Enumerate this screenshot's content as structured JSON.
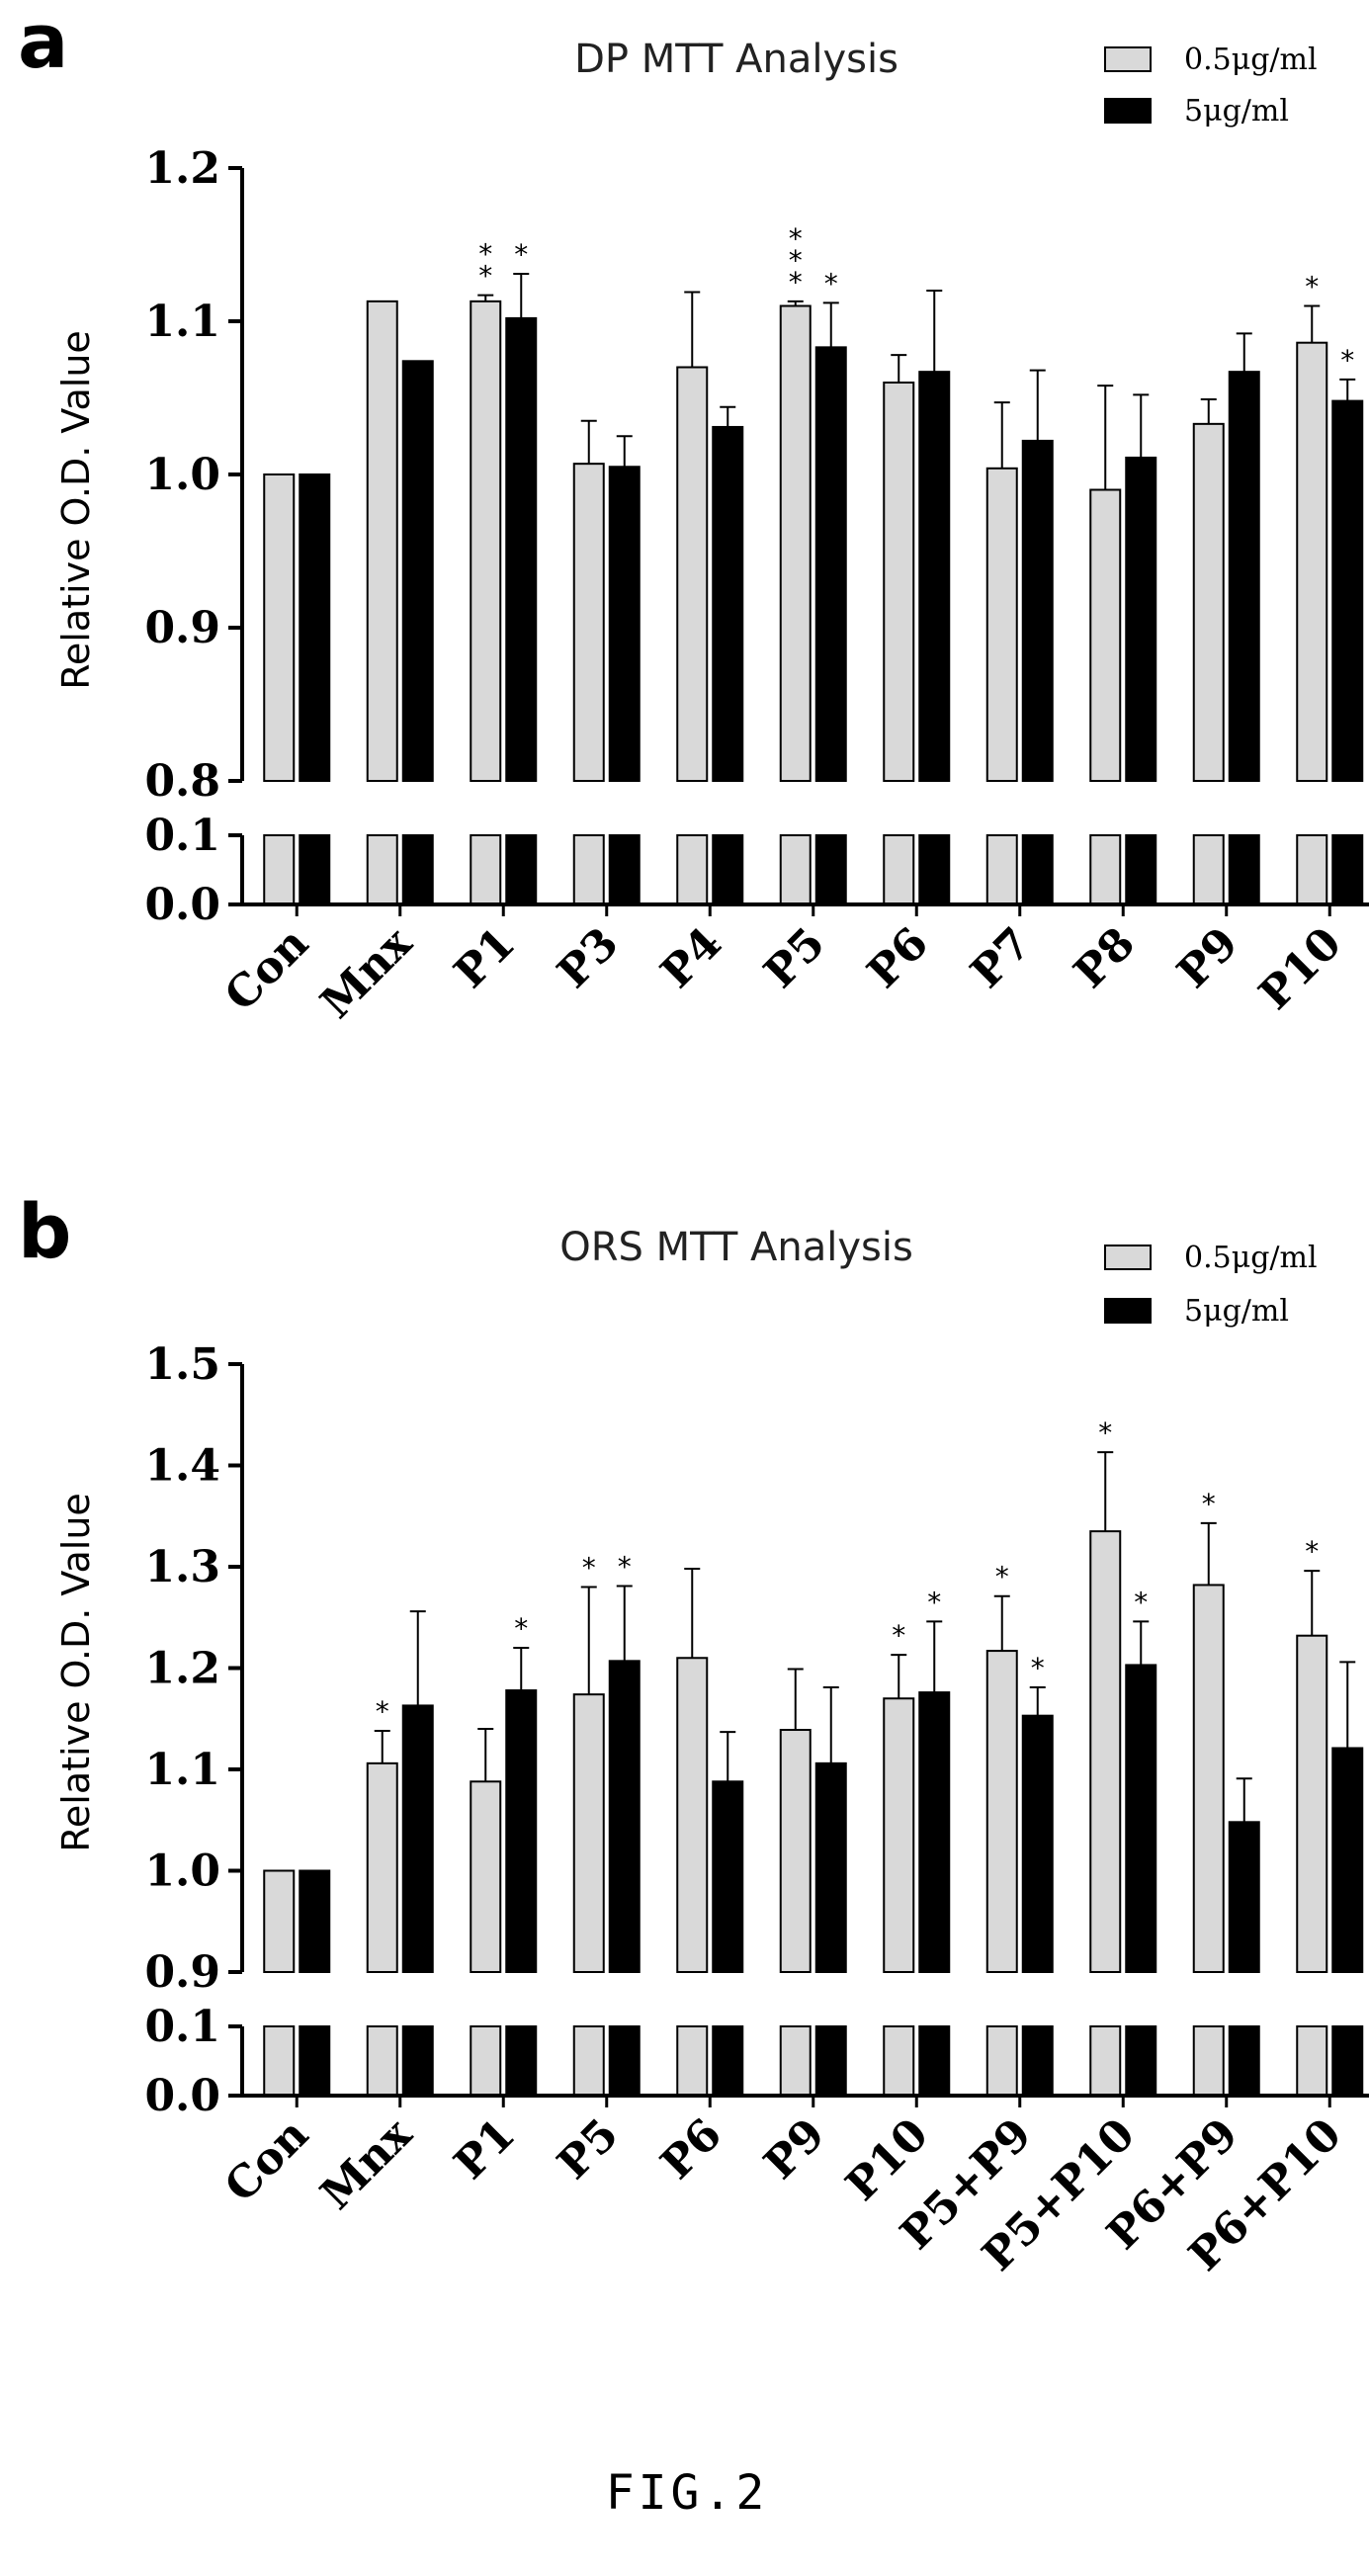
{
  "figure_caption": "FIG.2",
  "colors": {
    "series_light": "#d9d9d9",
    "series_dark": "#000000"
  },
  "chart_data": [
    {
      "panel_label": "a",
      "type": "bar",
      "title": "DP MTT Analysis",
      "xlabel": "",
      "ylabel": "Relative O.D. Value",
      "axis_break": {
        "lower_range": [
          0.0,
          0.1
        ],
        "upper_range": [
          0.8,
          1.2
        ]
      },
      "lower_ticks": [
        "0.0",
        "0.1"
      ],
      "upper_ticks": [
        "0.8",
        "0.9",
        "1.0",
        "1.1",
        "1.2"
      ],
      "legend_position": "top-right",
      "categories": [
        "Con",
        "Mnx",
        "P1",
        "P3",
        "P4",
        "P5",
        "P6",
        "P7",
        "P8",
        "P9",
        "P10"
      ],
      "series": [
        {
          "name": "0.5μg/ml",
          "values": [
            1.0,
            1.113,
            1.113,
            1.007,
            1.07,
            1.11,
            1.06,
            1.004,
            0.99,
            1.033,
            1.086
          ],
          "errors": [
            0,
            0,
            0.004,
            0.028,
            0.049,
            0.003,
            0.018,
            0.043,
            0.068,
            0.016,
            0.024
          ],
          "significance": [
            "",
            "",
            "**",
            "",
            "",
            "***",
            "",
            "",
            "",
            "",
            "*"
          ]
        },
        {
          "name": "5μg/ml",
          "values": [
            1.0,
            1.074,
            1.102,
            1.005,
            1.031,
            1.083,
            1.067,
            1.022,
            1.011,
            1.067,
            1.048
          ],
          "errors": [
            0,
            0,
            0.029,
            0.02,
            0.013,
            0.029,
            0.053,
            0.046,
            0.041,
            0.025,
            0.014
          ],
          "significance": [
            "",
            "",
            "*",
            "",
            "",
            "*",
            "",
            "",
            "",
            "",
            "*"
          ]
        }
      ]
    },
    {
      "panel_label": "b",
      "type": "bar",
      "title": "ORS MTT Analysis",
      "xlabel": "",
      "ylabel": "Relative O.D. Value",
      "axis_break": {
        "lower_range": [
          0.0,
          0.1
        ],
        "upper_range": [
          0.9,
          1.5
        ]
      },
      "lower_ticks": [
        "0.0",
        "0.1"
      ],
      "upper_ticks": [
        "0.9",
        "1.0",
        "1.1",
        "1.2",
        "1.3",
        "1.4",
        "1.5"
      ],
      "legend_position": "top-right",
      "categories": [
        "Con",
        "Mnx",
        "P1",
        "P5",
        "P6",
        "P9",
        "P10",
        "P5+P9",
        "P5+P10",
        "P6+P9",
        "P6+P10"
      ],
      "series": [
        {
          "name": "0.5μg/ml",
          "values": [
            1.0,
            1.106,
            1.088,
            1.174,
            1.21,
            1.139,
            1.17,
            1.217,
            1.335,
            1.282,
            1.232
          ],
          "errors": [
            0,
            0.032,
            0.052,
            0.106,
            0.088,
            0.06,
            0.043,
            0.054,
            0.078,
            0.061,
            0.064
          ],
          "significance": [
            "",
            "*",
            "",
            "*",
            "",
            "",
            "*",
            "*",
            "*",
            "*",
            "*"
          ]
        },
        {
          "name": "5μg/ml",
          "values": [
            1.0,
            1.163,
            1.178,
            1.207,
            1.088,
            1.106,
            1.176,
            1.153,
            1.203,
            1.048,
            1.121
          ],
          "errors": [
            0,
            0.093,
            0.042,
            0.074,
            0.049,
            0.075,
            0.07,
            0.028,
            0.043,
            0.043,
            0.085
          ],
          "significance": [
            "",
            "",
            "*",
            "*",
            "",
            "",
            "*",
            "*",
            "*",
            "",
            ""
          ]
        }
      ]
    }
  ]
}
